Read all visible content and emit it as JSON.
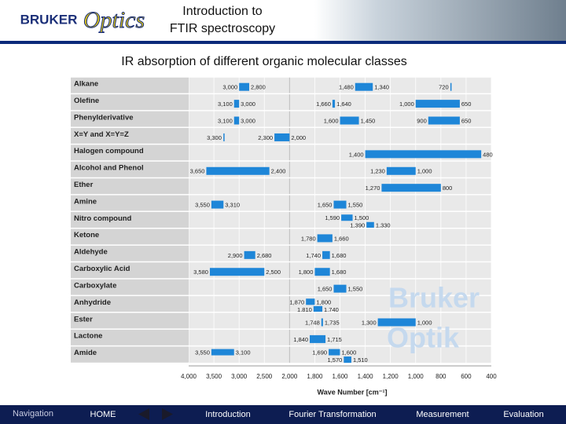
{
  "header": {
    "logo_left": "BRUKER",
    "logo_right": "Optics",
    "title_lines": [
      "Introduction to",
      "FTIR spectroscopy"
    ]
  },
  "chart_data": {
    "type": "range",
    "title": "IR absorption of different organic molecular classes",
    "xlabel": "Wave Number [cm⁻¹]",
    "color": "#1e86d8",
    "reverse_x": true,
    "xlim": [
      4000,
      400
    ],
    "xticks": [
      {
        "value": 4000,
        "label": "4,000"
      },
      {
        "value": 3500,
        "label": "3,500"
      },
      {
        "value": 3000,
        "label": "3,000"
      },
      {
        "value": 2500,
        "label": "2,500"
      },
      {
        "value": 2000,
        "label": "2,000"
      },
      {
        "value": 1800,
        "label": "1,800"
      },
      {
        "value": 1600,
        "label": "1,600"
      },
      {
        "value": 1400,
        "label": "1,400"
      },
      {
        "value": 1200,
        "label": "1,200"
      },
      {
        "value": 1000,
        "label": "1,000"
      },
      800,
      600,
      400
    ],
    "rows": [
      {
        "name": "Alkane",
        "bands": [
          {
            "values": [
              3000,
              2800
            ],
            "value_labels": [
              "3,000",
              "2,800"
            ]
          },
          {
            "values": [
              1480,
              1340
            ],
            "value_labels": [
              "1,480",
              "1,340"
            ]
          },
          {
            "values": [
              720
            ],
            "value_labels": [
              "720"
            ]
          }
        ]
      },
      {
        "name": "Olefine",
        "bands": [
          {
            "values": [
              3100,
              3000
            ],
            "value_labels": [
              "3,100",
              "3,000"
            ]
          },
          {
            "values": [
              1660,
              1640
            ],
            "value_labels": [
              "1,660",
              "1,640"
            ]
          },
          {
            "values": [
              1000,
              650
            ],
            "value_labels": [
              "1,000",
              "650"
            ]
          }
        ]
      },
      {
        "name": "Phenylderivative",
        "bands": [
          {
            "values": [
              3100,
              3000
            ],
            "value_labels": [
              "3,100",
              "3,000"
            ]
          },
          {
            "values": [
              1600,
              1450
            ],
            "value_labels": [
              "1,600",
              "1,450"
            ]
          },
          {
            "values": [
              900,
              650
            ],
            "value_labels": [
              "900",
              "650"
            ]
          }
        ]
      },
      {
        "name": "X≡Y and X=Y=Z",
        "bands": [
          {
            "values": [
              3300
            ],
            "value_labels": [
              "3,300"
            ]
          },
          {
            "values": [
              2300,
              2000
            ],
            "value_labels": [
              "2,300",
              "2,000"
            ]
          }
        ]
      },
      {
        "name": "Halogen compound",
        "bands": [
          {
            "values": [
              1400,
              480
            ],
            "value_labels": [
              "1,400",
              "480"
            ]
          }
        ]
      },
      {
        "name": "Alcohol and Phenol",
        "bands": [
          {
            "values": [
              3650,
              2400
            ],
            "value_labels": [
              "3,650",
              "2,400"
            ]
          },
          {
            "values": [
              1230,
              1000
            ],
            "value_labels": [
              "1,230",
              "1,000"
            ]
          }
        ]
      },
      {
        "name": "Ether",
        "bands": [
          {
            "values": [
              1270,
              800
            ],
            "value_labels": [
              "1,270",
              "800"
            ]
          }
        ]
      },
      {
        "name": "Amine",
        "bands": [
          {
            "values": [
              3550,
              3310
            ],
            "value_labels": [
              "3,550",
              "3,310"
            ]
          },
          {
            "values": [
              1650,
              1550
            ],
            "value_labels": [
              "1,650",
              "1,550"
            ]
          }
        ]
      },
      {
        "name": "Nitro compound",
        "bands": [
          {
            "values": [
              1590,
              1500
            ],
            "value_labels": [
              "1,590",
              "1,500"
            ]
          },
          {
            "values": [
              1390,
              1330
            ],
            "value_labels": [
              "1,390",
              "1,330"
            ]
          }
        ]
      },
      {
        "name": "Ketone",
        "bands": [
          {
            "values": [
              1780,
              1660
            ],
            "value_labels": [
              "1,780",
              "1,660"
            ]
          }
        ]
      },
      {
        "name": "Aldehyde",
        "bands": [
          {
            "values": [
              2900,
              2680
            ],
            "value_labels": [
              "2,900",
              "2,680"
            ]
          },
          {
            "values": [
              1740,
              1680
            ],
            "value_labels": [
              "1,740",
              "1,680"
            ]
          }
        ]
      },
      {
        "name": "Carboxylic Acid",
        "bands": [
          {
            "values": [
              3580,
              2500
            ],
            "value_labels": [
              "3,580",
              "2,500"
            ]
          },
          {
            "values": [
              1800,
              1680
            ],
            "value_labels": [
              "1,800",
              "1,680"
            ]
          }
        ]
      },
      {
        "name": "Carboxylate",
        "bands": [
          {
            "values": [
              1650,
              1550
            ],
            "value_labels": [
              "1,650",
              "1,550"
            ]
          }
        ]
      },
      {
        "name": "Anhydride",
        "bands": [
          {
            "values": [
              1870,
              1800
            ],
            "value_labels": [
              "1,870",
              "1,800"
            ]
          },
          {
            "values": [
              1810,
              1740
            ],
            "value_labels": [
              "1,810",
              "1,740"
            ]
          }
        ]
      },
      {
        "name": "Ester",
        "bands": [
          {
            "values": [
              1748,
              1735
            ],
            "value_labels": [
              "1,748",
              "1,735"
            ]
          },
          {
            "values": [
              1300,
              1000
            ],
            "value_labels": [
              "1,300",
              "1,000"
            ]
          }
        ]
      },
      {
        "name": "Lactone",
        "bands": [
          {
            "values": [
              1840,
              1715
            ],
            "value_labels": [
              "1,840",
              "1,715"
            ]
          }
        ]
      },
      {
        "name": "Amide",
        "bands": [
          {
            "values": [
              3550,
              3100
            ],
            "value_labels": [
              "3,550",
              "3,100"
            ]
          },
          {
            "values": [
              1690,
              1600
            ],
            "value_labels": [
              "1,690",
              "1,600"
            ]
          },
          {
            "values": [
              1570,
              1510
            ],
            "value_labels": [
              "1,570",
              "1,510"
            ]
          }
        ]
      }
    ],
    "watermark": [
      "Bruker",
      "Optik"
    ]
  },
  "navigation": {
    "label": "Navigation",
    "items": [
      "HOME",
      "Introduction",
      "Fourier Transformation",
      "Measurement",
      "Evaluation"
    ]
  }
}
